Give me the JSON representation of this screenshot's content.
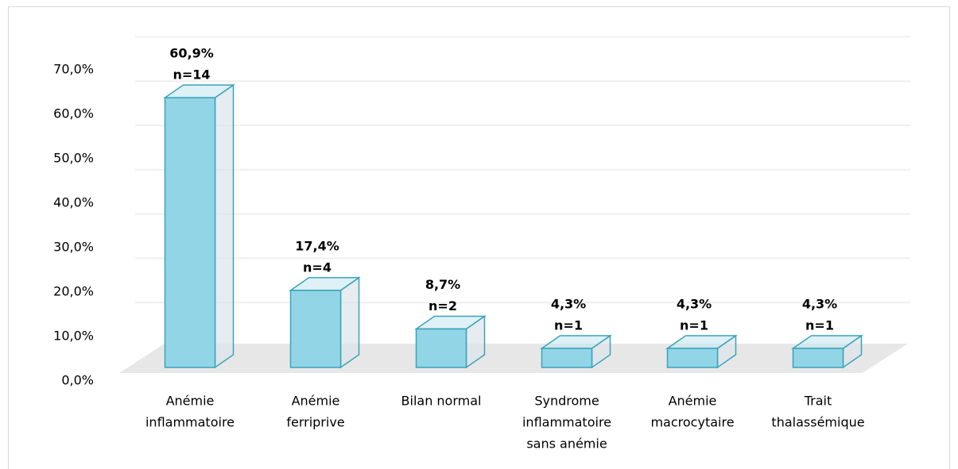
{
  "chart_data": {
    "type": "bar3d",
    "categories": [
      [
        "Anémie",
        "inflammatoire"
      ],
      [
        "Anémie",
        "ferriprive"
      ],
      [
        "Bilan normal"
      ],
      [
        "Syndrome",
        "inflammatoire",
        "sans anémie"
      ],
      [
        "Anémie",
        "macrocytaire"
      ],
      [
        "Trait",
        "thalassémique"
      ]
    ],
    "values": [
      60.9,
      17.4,
      8.7,
      4.3,
      4.3,
      4.3
    ],
    "value_labels": [
      "60,9%",
      "17,4%",
      "8,7%",
      "4,3%",
      "4,3%",
      "4,3%"
    ],
    "count_labels": [
      "n=14",
      "n=4",
      "n=2",
      "n=1",
      "n=1",
      "n=1"
    ],
    "color": "#92d5e6",
    "ylim": [
      0,
      70
    ],
    "yticks": [
      {
        "value": 0,
        "label": "0,0%"
      },
      {
        "value": 10,
        "label": "10,0%"
      },
      {
        "value": 20,
        "label": "20,0%"
      },
      {
        "value": 30,
        "label": "30,0%"
      },
      {
        "value": 40,
        "label": "40,0%"
      },
      {
        "value": 50,
        "label": "50,0%"
      },
      {
        "value": 60,
        "label": "60,0%"
      },
      {
        "value": 70,
        "label": "70,0%"
      }
    ],
    "grid": true
  }
}
